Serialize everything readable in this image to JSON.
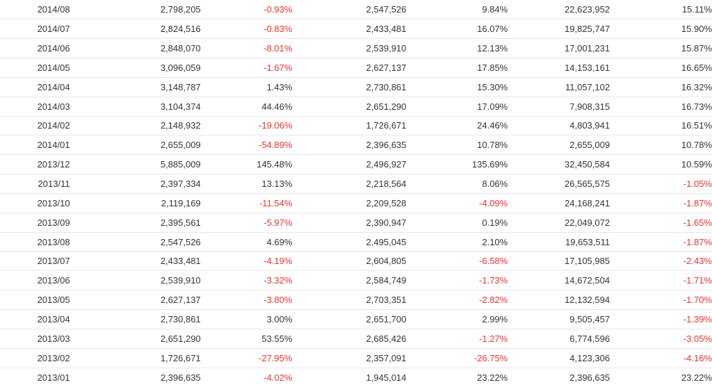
{
  "colors": {
    "text": "#333333",
    "negative": "#e8332e",
    "row_border": "#e8e8e8"
  },
  "rows": [
    {
      "month": "2014/08",
      "sales": "2,798,205",
      "mom": "-0.93%",
      "prev_year": "2,547,526",
      "yoy": "9.84%",
      "cumulative": "22,623,952",
      "cum_yoy": "15.11%"
    },
    {
      "month": "2014/07",
      "sales": "2,824,516",
      "mom": "-0.83%",
      "prev_year": "2,433,481",
      "yoy": "16.07%",
      "cumulative": "19,825,747",
      "cum_yoy": "15.90%"
    },
    {
      "month": "2014/06",
      "sales": "2,848,070",
      "mom": "-8.01%",
      "prev_year": "2,539,910",
      "yoy": "12.13%",
      "cumulative": "17,001,231",
      "cum_yoy": "15.87%"
    },
    {
      "month": "2014/05",
      "sales": "3,096,059",
      "mom": "-1.67%",
      "prev_year": "2,627,137",
      "yoy": "17.85%",
      "cumulative": "14,153,161",
      "cum_yoy": "16.65%"
    },
    {
      "month": "2014/04",
      "sales": "3,148,787",
      "mom": "1.43%",
      "prev_year": "2,730,861",
      "yoy": "15.30%",
      "cumulative": "11,057,102",
      "cum_yoy": "16.32%"
    },
    {
      "month": "2014/03",
      "sales": "3,104,374",
      "mom": "44.46%",
      "prev_year": "2,651,290",
      "yoy": "17.09%",
      "cumulative": "7,908,315",
      "cum_yoy": "16.73%"
    },
    {
      "month": "2014/02",
      "sales": "2,148,932",
      "mom": "-19.06%",
      "prev_year": "1,726,671",
      "yoy": "24.46%",
      "cumulative": "4,803,941",
      "cum_yoy": "16.51%"
    },
    {
      "month": "2014/01",
      "sales": "2,655,009",
      "mom": "-54.89%",
      "prev_year": "2,396,635",
      "yoy": "10.78%",
      "cumulative": "2,655,009",
      "cum_yoy": "10.78%"
    },
    {
      "month": "2013/12",
      "sales": "5,885,009",
      "mom": "145.48%",
      "prev_year": "2,496,927",
      "yoy": "135.69%",
      "cumulative": "32,450,584",
      "cum_yoy": "10.59%"
    },
    {
      "month": "2013/11",
      "sales": "2,397,334",
      "mom": "13.13%",
      "prev_year": "2,218,564",
      "yoy": "8.06%",
      "cumulative": "26,565,575",
      "cum_yoy": "-1.05%"
    },
    {
      "month": "2013/10",
      "sales": "2,119,169",
      "mom": "-11.54%",
      "prev_year": "2,209,528",
      "yoy": "-4.09%",
      "cumulative": "24,168,241",
      "cum_yoy": "-1.87%"
    },
    {
      "month": "2013/09",
      "sales": "2,395,561",
      "mom": "-5.97%",
      "prev_year": "2,390,947",
      "yoy": "0.19%",
      "cumulative": "22,049,072",
      "cum_yoy": "-1.65%"
    },
    {
      "month": "2013/08",
      "sales": "2,547,526",
      "mom": "4.69%",
      "prev_year": "2,495,045",
      "yoy": "2.10%",
      "cumulative": "19,653,511",
      "cum_yoy": "-1.87%"
    },
    {
      "month": "2013/07",
      "sales": "2,433,481",
      "mom": "-4.19%",
      "prev_year": "2,604,805",
      "yoy": "-6.58%",
      "cumulative": "17,105,985",
      "cum_yoy": "-2.43%"
    },
    {
      "month": "2013/06",
      "sales": "2,539,910",
      "mom": "-3.32%",
      "prev_year": "2,584,749",
      "yoy": "-1.73%",
      "cumulative": "14,672,504",
      "cum_yoy": "-1.71%"
    },
    {
      "month": "2013/05",
      "sales": "2,627,137",
      "mom": "-3.80%",
      "prev_year": "2,703,351",
      "yoy": "-2.82%",
      "cumulative": "12,132,594",
      "cum_yoy": "-1.70%"
    },
    {
      "month": "2013/04",
      "sales": "2,730,861",
      "mom": "3.00%",
      "prev_year": "2,651,700",
      "yoy": "2.99%",
      "cumulative": "9,505,457",
      "cum_yoy": "-1.39%"
    },
    {
      "month": "2013/03",
      "sales": "2,651,290",
      "mom": "53.55%",
      "prev_year": "2,685,426",
      "yoy": "-1.27%",
      "cumulative": "6,774,596",
      "cum_yoy": "-3.05%"
    },
    {
      "month": "2013/02",
      "sales": "1,726,671",
      "mom": "-27.95%",
      "prev_year": "2,357,091",
      "yoy": "-26.75%",
      "cumulative": "4,123,306",
      "cum_yoy": "-4.16%"
    },
    {
      "month": "2013/01",
      "sales": "2,396,635",
      "mom": "-4.02%",
      "prev_year": "1,945,014",
      "yoy": "23.22%",
      "cumulative": "2,396,635",
      "cum_yoy": "23.22%"
    }
  ]
}
